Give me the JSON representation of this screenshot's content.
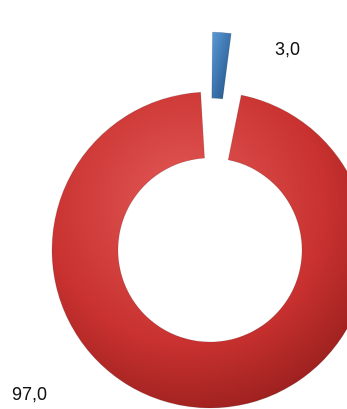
{
  "chart_data": {
    "type": "pie",
    "categories": [
      "",
      ""
    ],
    "values": [
      3.0,
      97.0
    ],
    "data_labels": [
      "3,0",
      "97,0"
    ],
    "colors": [
      "#2E75B6",
      "#C8312F"
    ],
    "donut": true,
    "exploded_slice": 0,
    "legend": "none",
    "title": ""
  }
}
